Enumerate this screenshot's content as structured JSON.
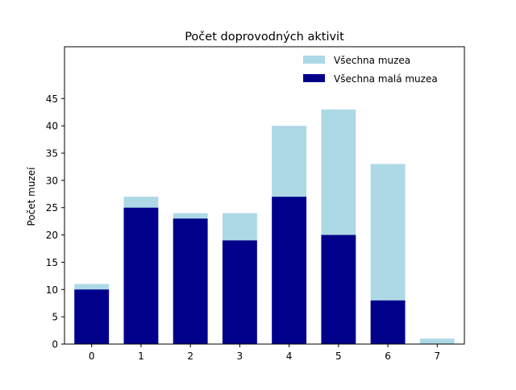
{
  "chart_data": {
    "type": "bar",
    "title": "Počet doprovodných aktivit",
    "xlabel": "",
    "ylabel": "Počet muzeí",
    "categories": [
      "0",
      "1",
      "2",
      "3",
      "4",
      "5",
      "6",
      "7"
    ],
    "series": [
      {
        "name": "Všechna muzea",
        "values": [
          11,
          27,
          24,
          24,
          40,
          43,
          33,
          1
        ],
        "color": "#add8e6"
      },
      {
        "name": "Všechna malá muzea",
        "values": [
          10,
          25,
          23,
          19,
          27,
          20,
          8,
          0
        ],
        "color": "#00008b"
      }
    ],
    "yticks": [
      "0",
      "5",
      "10",
      "15",
      "20",
      "25",
      "30",
      "35",
      "40",
      "45"
    ],
    "ylim": [
      0,
      54.5
    ],
    "grid": false,
    "legend_position": "top-right"
  }
}
